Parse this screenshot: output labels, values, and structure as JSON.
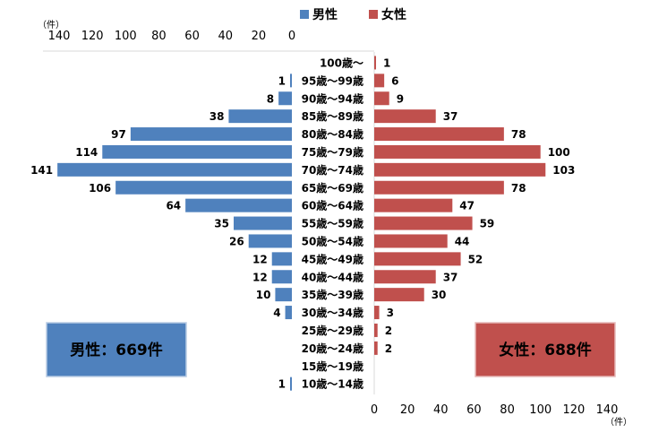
{
  "chart_data": {
    "type": "bar",
    "orientation": "horizontal-pyramid",
    "categories": [
      "100歳～",
      "95歳～99歳",
      "90歳～94歳",
      "85歳～89歳",
      "80歳～84歳",
      "75歳～79歳",
      "70歳～74歳",
      "65歳～69歳",
      "60歳～64歳",
      "55歳～59歳",
      "50歳～54歳",
      "45歳～49歳",
      "40歳～44歳",
      "35歳～39歳",
      "30歳～34歳",
      "25歳～29歳",
      "20歳～24歳",
      "15歳～19歳",
      "10歳～14歳"
    ],
    "series": [
      {
        "name": "男性",
        "color": "#4f81bd",
        "values": [
          0,
          1,
          8,
          38,
          97,
          114,
          141,
          106,
          64,
          35,
          26,
          12,
          12,
          10,
          4,
          0,
          0,
          0,
          1
        ],
        "labels": [
          "",
          "1",
          "8",
          "38",
          "97",
          "114",
          "141",
          "106",
          "64",
          "35",
          "26",
          "12",
          "12",
          "10",
          "4",
          "",
          "",
          "",
          "1"
        ]
      },
      {
        "name": "女性",
        "color": "#c0504d",
        "values": [
          1,
          6,
          9,
          37,
          78,
          100,
          103,
          78,
          47,
          59,
          44,
          52,
          37,
          30,
          3,
          2,
          2,
          0,
          0
        ],
        "labels": [
          "1",
          "6",
          "9",
          "37",
          "78",
          "100",
          "103",
          "78",
          "47",
          "59",
          "44",
          "52",
          "37",
          "30",
          "3",
          "2",
          "2",
          "",
          ""
        ]
      }
    ],
    "xlim": [
      0,
      140
    ],
    "ticks": [
      "0",
      "20",
      "40",
      "60",
      "80",
      "100",
      "120",
      "140"
    ],
    "male_ticks": [
      "140",
      "120",
      "100",
      "80",
      "60",
      "40",
      "20",
      "0"
    ],
    "unit_top": "（件）",
    "unit_bottom": "（件）",
    "legend_position": "top",
    "totals": {
      "male": "男性：669件",
      "female": "女性：688件"
    },
    "grid": false
  }
}
